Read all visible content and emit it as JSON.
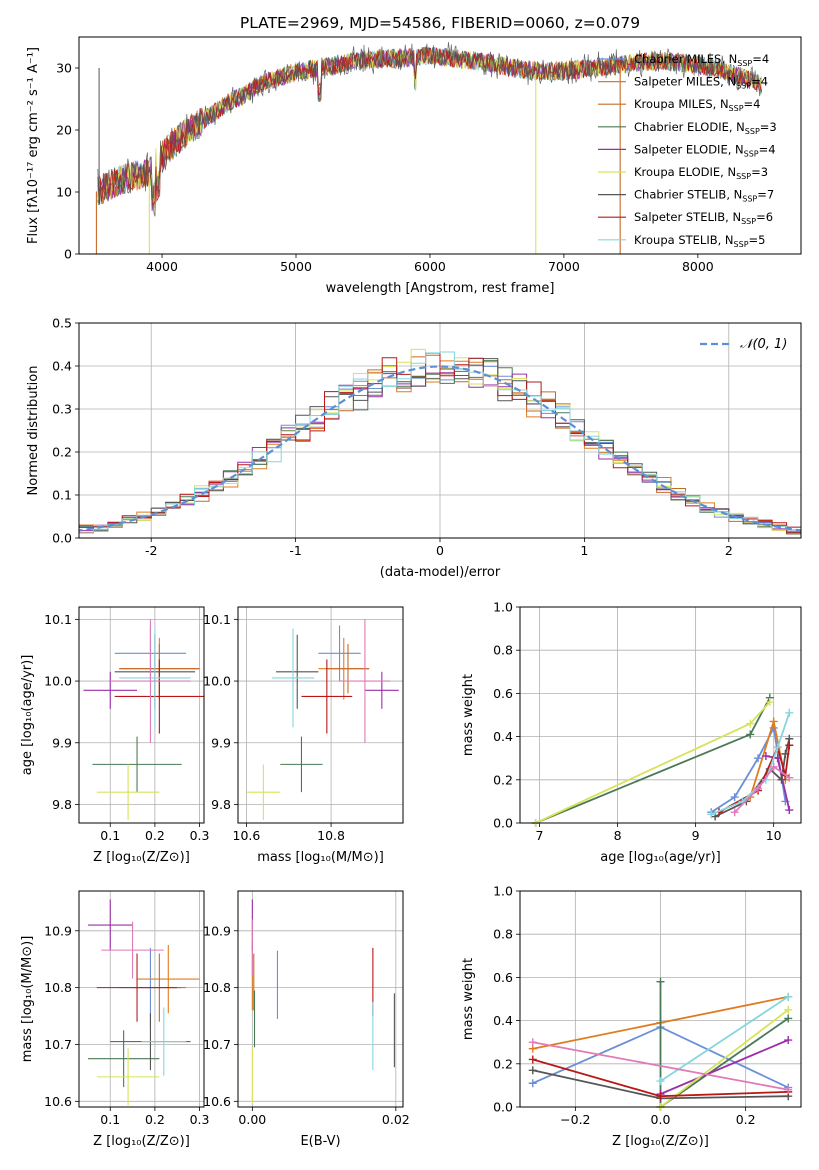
{
  "title": "PLATE=2969, MJD=54586, FIBERID=0060, z=0.079",
  "colors": [
    "#6a8fd8",
    "#e07b20",
    "#c66a2a",
    "#4a7a55",
    "#9b2fa8",
    "#d7e35a",
    "#555555",
    "#b81818",
    "#86d6de"
  ],
  "chart_data": [
    {
      "id": "spectrum",
      "type": "line",
      "ylabel": "Flux [fλ10⁻¹⁷ erg cm⁻² s⁻¹ A⁻¹]",
      "xlabel": "wavelength [Angstrom, rest frame]",
      "xlim": [
        3380,
        8770
      ],
      "ylim": [
        0,
        35
      ],
      "xticks": [
        4000,
        5000,
        6000,
        7000,
        8000
      ],
      "yticks": [
        0,
        10,
        20,
        30
      ],
      "grid": false,
      "legend_position": "top-right",
      "legend": [
        {
          "label": "Chabrier MILES, N",
          "sub": "SSP",
          "suffix": "=4",
          "color": "#6a8fd8"
        },
        {
          "label": "Salpeter MILES, N",
          "sub": "SSP",
          "suffix": "=4",
          "color": "#e07b20"
        },
        {
          "label": "Kroupa MILES, N",
          "sub": "SSP",
          "suffix": "=4",
          "color": "#c66a2a"
        },
        {
          "label": "Chabrier ELODIE, N",
          "sub": "SSP",
          "suffix": "=3",
          "color": "#4a7a55"
        },
        {
          "label": "Salpeter ELODIE, N",
          "sub": "SSP",
          "suffix": "=4",
          "color": "#9b2fa8"
        },
        {
          "label": "Kroupa ELODIE, N",
          "sub": "SSP",
          "suffix": "=3",
          "color": "#d7e35a"
        },
        {
          "label": "Chabrier STELIB, N",
          "sub": "SSP",
          "suffix": "=7",
          "color": "#555555"
        },
        {
          "label": "Salpeter STELIB, N",
          "sub": "SSP",
          "suffix": "=6",
          "color": "#b81818"
        },
        {
          "label": "Kroupa STELIB, N",
          "sub": "SSP",
          "suffix": "=5",
          "color": "#86d6de"
        }
      ],
      "continuum": {
        "x": [
          3500,
          3600,
          3700,
          3800,
          3900,
          4000,
          4100,
          4200,
          4300,
          4400,
          4500,
          4600,
          4700,
          4800,
          4900,
          5000,
          5200,
          5400,
          5600,
          5800,
          6000,
          6200,
          6400,
          6600,
          6800,
          7000,
          7200,
          7400,
          7600,
          7800,
          8000,
          8200,
          8400,
          8500
        ],
        "y": [
          10,
          11,
          12,
          12.5,
          13,
          16,
          18,
          20,
          21.5,
          23,
          24.5,
          25.5,
          27,
          28,
          28.5,
          29.5,
          30,
          31,
          31.5,
          31.5,
          32,
          31.5,
          31,
          30,
          29.5,
          29.5,
          30,
          30.5,
          31,
          31,
          30.5,
          29.5,
          28,
          27
        ]
      },
      "drops": [
        {
          "x": 3510,
          "color": "#c66a2a",
          "to": 0
        },
        {
          "x": 3905,
          "color": "#d7e35a",
          "to": 0
        },
        {
          "x": 6790,
          "color": "#d7e35a",
          "to": 0
        },
        {
          "x": 7420,
          "color": "#c66a2a",
          "to": 0
        }
      ]
    },
    {
      "id": "residuals",
      "type": "histogram",
      "ylabel": "Normed distribution",
      "xlabel": "(data-model)/error",
      "xlim": [
        -2.5,
        2.5
      ],
      "ylim": [
        0,
        0.5
      ],
      "xticks": [
        -2,
        -1,
        0,
        1,
        2
      ],
      "yticks": [
        0,
        0.1,
        0.2,
        0.3,
        0.4,
        0.5
      ],
      "grid": true,
      "legend_position": "top-right",
      "gaussian_label": "𝒩(0, 1)",
      "bin_width": 0.1
    },
    {
      "id": "age_vs_Z",
      "type": "scatter",
      "ylabel": "age  [log₁₀(age/yr)]",
      "xlabel": "Z [log₁₀(Z/Z⊙)]",
      "xlim": [
        0.03,
        0.31
      ],
      "ylim": [
        9.77,
        10.12
      ],
      "xticks": [
        0.1,
        0.2,
        0.3
      ],
      "yticks": [
        9.8,
        9.9,
        10.0,
        10.1
      ],
      "grid": true,
      "points": [
        {
          "x": 0.19,
          "xerr": 0.08,
          "y": 10.045,
          "yerr": 0.045,
          "color": "#6a8fd8"
        },
        {
          "x": 0.21,
          "xerr": 0.09,
          "y": 10.02,
          "yerr": 0.05,
          "color": "#e07b20"
        },
        {
          "x": 0.21,
          "xerr": 0.09,
          "y": 10.02,
          "yerr": 0.04,
          "color": "#c66a2a"
        },
        {
          "x": 0.16,
          "xerr": 0.1,
          "y": 9.865,
          "yerr": 0.045,
          "color": "#4a7a55"
        },
        {
          "x": 0.1,
          "xerr": 0.06,
          "y": 9.985,
          "yerr": 0.03,
          "color": "#9b2fa8"
        },
        {
          "x": 0.14,
          "xerr": 0.07,
          "y": 9.82,
          "yerr": 0.045,
          "color": "#d7e35a"
        },
        {
          "x": 0.2,
          "xerr": 0.09,
          "y": 10.015,
          "yerr": 0.06,
          "color": "#555555"
        },
        {
          "x": 0.21,
          "xerr": 0.1,
          "y": 9.975,
          "yerr": 0.06,
          "color": "#b81818"
        },
        {
          "x": 0.2,
          "xerr": 0.08,
          "y": 10.005,
          "yerr": 0.08,
          "color": "#86d6de"
        },
        {
          "x": 0.19,
          "xerr": 0.09,
          "y": 10.0,
          "yerr": 0.1,
          "color": "#e07ab8"
        }
      ]
    },
    {
      "id": "age_vs_mass",
      "type": "scatter",
      "ylabel": "",
      "xlabel": "mass [log₁₀(M/M⊙)]",
      "xlim": [
        10.58,
        10.97
      ],
      "ylim": [
        9.77,
        10.12
      ],
      "xticks": [
        10.6,
        10.8
      ],
      "yticks": [
        9.8,
        9.9,
        10.0,
        10.1
      ],
      "grid": true,
      "points": [
        {
          "x": 10.82,
          "xerr": 0.05,
          "y": 10.045,
          "yerr": 0.045,
          "color": "#6a8fd8"
        },
        {
          "x": 10.83,
          "xerr": 0.06,
          "y": 10.02,
          "yerr": 0.05,
          "color": "#e07b20"
        },
        {
          "x": 10.84,
          "xerr": 0.05,
          "y": 10.02,
          "yerr": 0.04,
          "color": "#c66a2a"
        },
        {
          "x": 10.73,
          "xerr": 0.05,
          "y": 9.865,
          "yerr": 0.045,
          "color": "#4a7a55"
        },
        {
          "x": 10.92,
          "xerr": 0.04,
          "y": 9.985,
          "yerr": 0.03,
          "color": "#9b2fa8"
        },
        {
          "x": 10.64,
          "xerr": 0.04,
          "y": 9.82,
          "yerr": 0.045,
          "color": "#d7e35a"
        },
        {
          "x": 10.72,
          "xerr": 0.05,
          "y": 10.015,
          "yerr": 0.06,
          "color": "#555555"
        },
        {
          "x": 10.79,
          "xerr": 0.06,
          "y": 9.975,
          "yerr": 0.06,
          "color": "#b81818"
        },
        {
          "x": 10.71,
          "xerr": 0.05,
          "y": 10.005,
          "yerr": 0.08,
          "color": "#86d6de"
        },
        {
          "x": 10.88,
          "xerr": 0.06,
          "y": 10.0,
          "yerr": 0.1,
          "color": "#e07ab8"
        }
      ]
    },
    {
      "id": "weight_vs_age",
      "type": "line",
      "ylabel": "mass weight",
      "xlabel": "age  [log₁₀(age/yr)]",
      "xlim": [
        6.75,
        10.35
      ],
      "ylim": [
        0,
        1
      ],
      "xticks": [
        7,
        8,
        9,
        10
      ],
      "yticks": [
        0,
        0.2,
        0.4,
        0.6,
        0.8,
        1.0
      ],
      "grid": true,
      "series": [
        {
          "color": "#6a8fd8",
          "x": [
            9.2,
            9.5,
            9.8,
            10.0,
            10.15
          ],
          "y": [
            0.05,
            0.12,
            0.3,
            0.44,
            0.1
          ]
        },
        {
          "color": "#e07b20",
          "x": [
            9.7,
            10.0,
            10.15
          ],
          "y": [
            0.12,
            0.47,
            0.2
          ]
        },
        {
          "color": "#4a7a55",
          "x": [
            6.95,
            9.7,
            9.95
          ],
          "y": [
            0.0,
            0.41,
            0.58
          ]
        },
        {
          "color": "#9b2fa8",
          "x": [
            9.9,
            10.05,
            10.2
          ],
          "y": [
            0.31,
            0.3,
            0.06
          ]
        },
        {
          "color": "#d7e35a",
          "x": [
            6.95,
            9.7,
            9.95
          ],
          "y": [
            0.0,
            0.46,
            0.56
          ]
        },
        {
          "color": "#555555",
          "x": [
            9.25,
            9.65,
            9.95,
            10.1,
            10.15,
            10.2
          ],
          "y": [
            0.03,
            0.1,
            0.25,
            0.2,
            0.32,
            0.39
          ]
        },
        {
          "color": "#b81818",
          "x": [
            9.3,
            9.8,
            10.05,
            10.15,
            10.2
          ],
          "y": [
            0.05,
            0.15,
            0.35,
            0.22,
            0.36
          ]
        },
        {
          "color": "#86d6de",
          "x": [
            9.2,
            9.6,
            9.9,
            10.05,
            10.2
          ],
          "y": [
            0.04,
            0.1,
            0.2,
            0.35,
            0.51
          ]
        },
        {
          "color": "#e07ab8",
          "x": [
            9.5,
            9.8,
            10.0,
            10.2
          ],
          "y": [
            0.05,
            0.16,
            0.26,
            0.21
          ]
        }
      ]
    },
    {
      "id": "mass_vs_Z",
      "type": "scatter",
      "ylabel": "mass [log₁₀(M/M⊙)]",
      "xlabel": "Z [log₁₀(Z/Z⊙)]",
      "xlim": [
        0.03,
        0.31
      ],
      "ylim": [
        10.59,
        10.97
      ],
      "xticks": [
        0.1,
        0.2,
        0.3
      ],
      "yticks": [
        10.6,
        10.7,
        10.8,
        10.9
      ],
      "grid": true,
      "points": [
        {
          "x": 0.19,
          "xerr": 0.07,
          "y": 10.8,
          "yerr": 0.07,
          "color": "#6a8fd8"
        },
        {
          "x": 0.23,
          "xerr": 0.07,
          "y": 10.815,
          "yerr": 0.06,
          "color": "#e07b20"
        },
        {
          "x": 0.21,
          "xerr": 0.06,
          "y": 10.8,
          "yerr": 0.06,
          "color": "#c66a2a"
        },
        {
          "x": 0.13,
          "xerr": 0.08,
          "y": 10.675,
          "yerr": 0.05,
          "color": "#4a7a55"
        },
        {
          "x": 0.1,
          "xerr": 0.05,
          "y": 10.91,
          "yerr": 0.045,
          "color": "#9b2fa8"
        },
        {
          "x": 0.14,
          "xerr": 0.07,
          "y": 10.643,
          "yerr": 0.05,
          "color": "#d7e35a"
        },
        {
          "x": 0.19,
          "xerr": 0.09,
          "y": 10.705,
          "yerr": 0.05,
          "color": "#555555"
        },
        {
          "x": 0.16,
          "xerr": 0.09,
          "y": 10.8,
          "yerr": 0.06,
          "color": "#b81818"
        },
        {
          "x": 0.22,
          "xerr": 0.05,
          "y": 10.705,
          "yerr": 0.06,
          "color": "#86d6de"
        },
        {
          "x": 0.15,
          "xerr": 0.07,
          "y": 10.866,
          "yerr": 0.05,
          "color": "#e07ab8"
        }
      ]
    },
    {
      "id": "mass_vs_ebv",
      "type": "scatter",
      "ylabel": "",
      "xlabel": "E(B-V)",
      "xlim": [
        -0.002,
        0.021
      ],
      "ylim": [
        10.59,
        10.97
      ],
      "xticks": [
        0.0,
        0.02
      ],
      "xtick_labels": [
        "0.00",
        "0.02"
      ],
      "yticks": [
        10.6,
        10.7,
        10.8,
        10.9
      ],
      "grid": true,
      "points": [
        {
          "x": 0.0035,
          "y": 10.805,
          "yerr": 0.06,
          "color": "#6a8fd8"
        },
        {
          "x": 0.0,
          "y": 10.82,
          "yerr": 0.06,
          "color": "#e07b20"
        },
        {
          "x": 0.0002,
          "y": 10.81,
          "yerr": 0.05,
          "color": "#c66a2a"
        },
        {
          "x": 0.0003,
          "y": 10.745,
          "yerr": 0.05,
          "color": "#4a7a55"
        },
        {
          "x": 0.0,
          "y": 10.91,
          "yerr": 0.045,
          "color": "#9b2fa8"
        },
        {
          "x": 0.0,
          "y": 10.645,
          "yerr": 0.05,
          "color": "#d7e35a"
        },
        {
          "x": 0.0198,
          "y": 10.725,
          "yerr": 0.065,
          "color": "#555555"
        },
        {
          "x": 0.0168,
          "y": 10.81,
          "yerr": 0.06,
          "color": "#b81818"
        },
        {
          "x": 0.0168,
          "y": 10.715,
          "yerr": 0.06,
          "color": "#86d6de"
        },
        {
          "x": 0.0,
          "y": 10.87,
          "yerr": 0.05,
          "color": "#e07ab8"
        }
      ]
    },
    {
      "id": "weight_vs_Z",
      "type": "line",
      "ylabel": "mass weight",
      "xlabel": "Z [log₁₀(Z/Z⊙)]",
      "xlim": [
        -0.33,
        0.33
      ],
      "ylim": [
        0,
        1
      ],
      "xticks": [
        -0.2,
        0.0,
        0.2
      ],
      "xtick_labels": [
        "−0.2",
        "0.0",
        "0.2"
      ],
      "yticks": [
        0,
        0.2,
        0.4,
        0.6,
        0.8,
        1.0
      ],
      "grid": true,
      "series": [
        {
          "color": "#6a8fd8",
          "x": [
            -0.3,
            0.0,
            0.3
          ],
          "y": [
            0.11,
            0.37,
            0.09
          ]
        },
        {
          "color": "#e07b20",
          "x": [
            -0.3,
            0.0,
            0.3
          ],
          "y": [
            0.27,
            0.39,
            0.51
          ]
        },
        {
          "color": "#4a7a55",
          "x": [
            0.0,
            0.0,
            0.3
          ],
          "y": [
            0.58,
            0.0,
            0.41
          ]
        },
        {
          "color": "#9b2fa8",
          "x": [
            0.0,
            0.3
          ],
          "y": [
            0.06,
            0.31
          ]
        },
        {
          "color": "#d7e35a",
          "x": [
            0.0,
            0.3
          ],
          "y": [
            0.0,
            0.45
          ]
        },
        {
          "color": "#555555",
          "x": [
            -0.3,
            0.0,
            0.3
          ],
          "y": [
            0.17,
            0.04,
            0.05
          ]
        },
        {
          "color": "#b81818",
          "x": [
            -0.3,
            0.0,
            0.3
          ],
          "y": [
            0.22,
            0.05,
            0.07
          ]
        },
        {
          "color": "#86d6de",
          "x": [
            0.0,
            0.3
          ],
          "y": [
            0.12,
            0.51
          ]
        },
        {
          "color": "#e07ab8",
          "x": [
            -0.3,
            0.3
          ],
          "y": [
            0.3,
            0.08
          ]
        }
      ]
    }
  ]
}
